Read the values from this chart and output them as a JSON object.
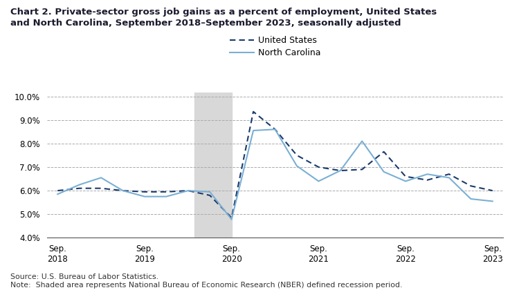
{
  "title_line1": "Chart 2. Private-sector gross job gains as a percent of employment, United States",
  "title_line2": "and North Carolina, September 2018–September 2023, seasonally adjusted",
  "source_note": "Source: U.S. Bureau of Labor Statistics.\nNote:  Shaded area represents National Bureau of Economic Research (NBER) defined recession period.",
  "us_label": "United States",
  "nc_label": "North Carolina",
  "us_y": [
    6.0,
    6.1,
    6.1,
    6.0,
    5.95,
    5.95,
    6.0,
    5.8,
    4.85,
    9.35,
    8.6,
    7.5,
    7.0,
    6.85,
    6.9,
    7.65,
    6.6,
    6.45,
    6.7,
    6.2,
    6.0
  ],
  "nc_y": [
    5.85,
    6.25,
    6.55,
    6.0,
    5.75,
    5.75,
    6.0,
    5.95,
    4.78,
    8.55,
    8.6,
    7.05,
    6.4,
    6.85,
    8.1,
    6.8,
    6.4,
    6.7,
    6.55,
    5.65,
    5.55
  ],
  "x": [
    0,
    1,
    2,
    3,
    4,
    5,
    6,
    7,
    8,
    9,
    10,
    11,
    12,
    13,
    14,
    15,
    16,
    17,
    18,
    19,
    20
  ],
  "sep_positions": [
    0,
    4,
    8,
    12,
    16,
    20
  ],
  "sep_labels": [
    "Sep.\n2018",
    "Sep.\n2019",
    "Sep.\n2020",
    "Sep.\n2021",
    "Sep.\n2022",
    "Sep.\n2023"
  ],
  "ylim": [
    4.0,
    10.0
  ],
  "yticks": [
    4.0,
    5.0,
    6.0,
    7.0,
    8.0,
    9.0,
    10.0
  ],
  "us_color": "#1a3a6b",
  "nc_color": "#7aafd4",
  "recession_start": 6.3,
  "recession_end": 8.0,
  "recession_color": "#d8d8d8",
  "xlim_left": -0.5,
  "xlim_right": 20.5
}
